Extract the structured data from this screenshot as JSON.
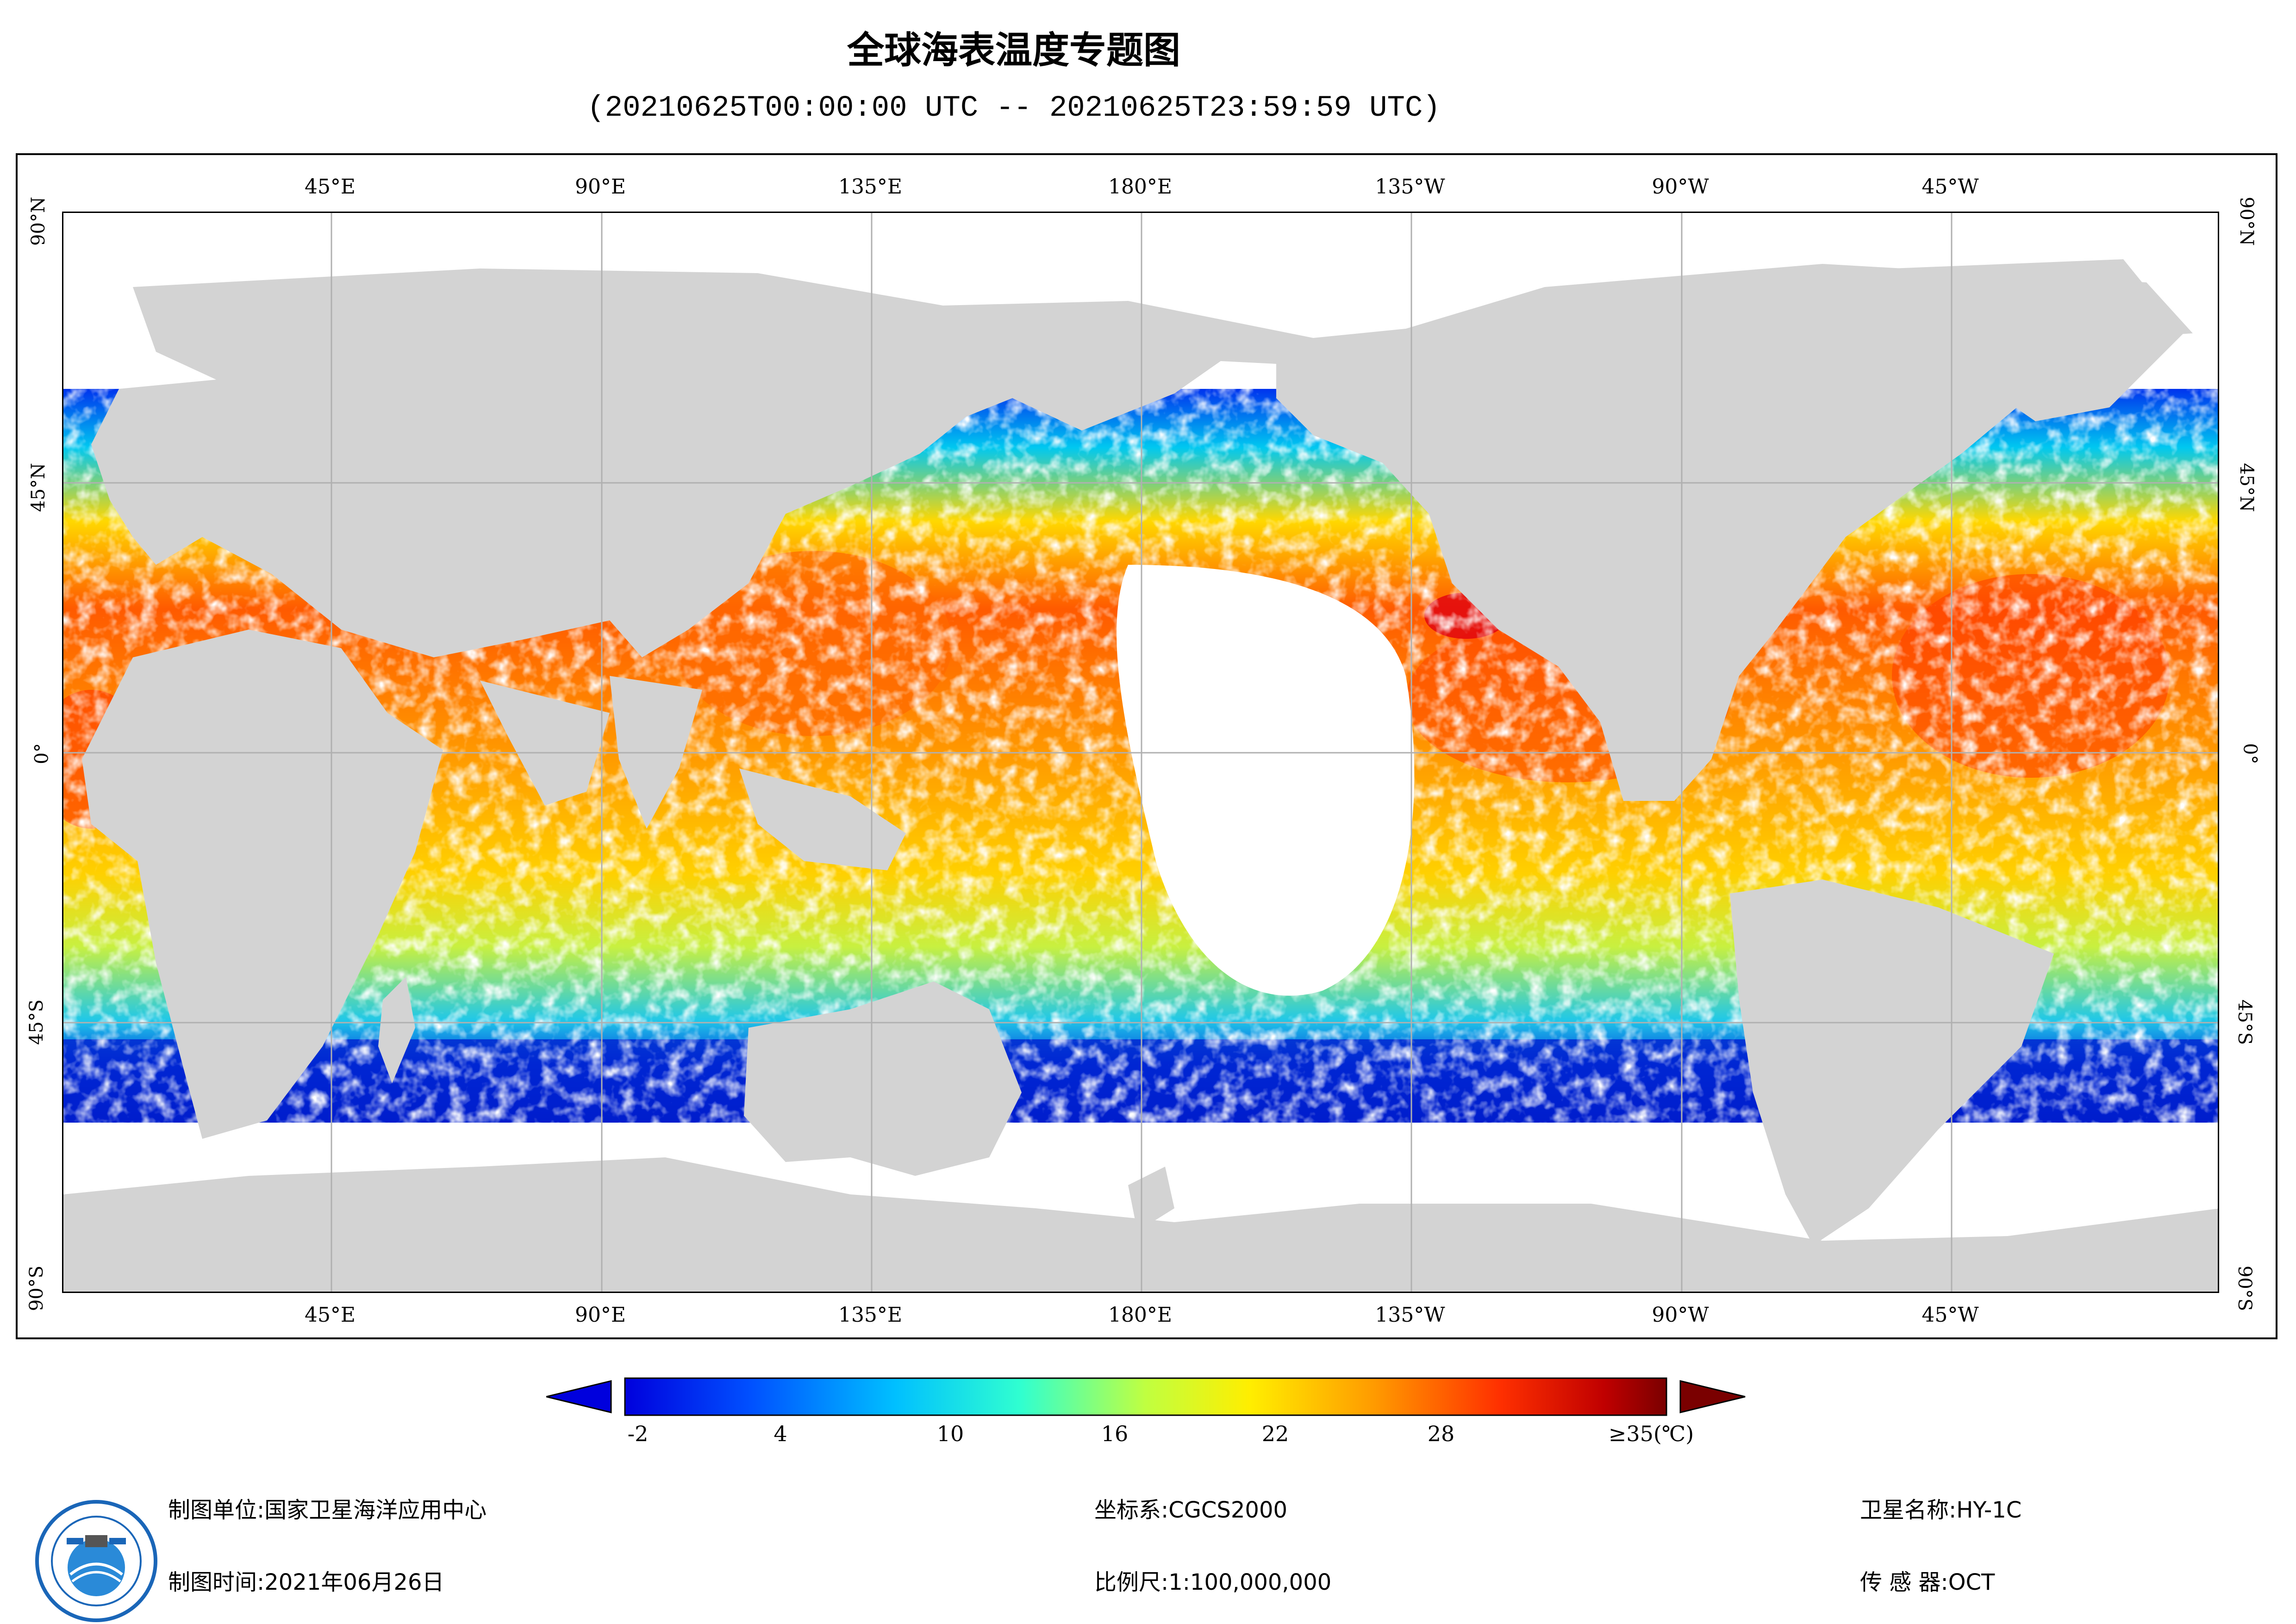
{
  "title": "全球海表温度专题图",
  "subtitle": "(20210625T00:00:00 UTC -- 20210625T23:59:59 UTC)",
  "map": {
    "lon_labels": [
      "45°E",
      "90°E",
      "135°E",
      "180°E",
      "135°W",
      "90°W",
      "45°W"
    ],
    "lat_labels": [
      "90°N",
      "45°N",
      "0°",
      "45°S",
      "90°S"
    ],
    "land_color": "#d3d3d3",
    "grid_color": "#b0b0b0"
  },
  "colorbar": {
    "ticks": [
      "-2",
      "4",
      "10",
      "16",
      "22",
      "28",
      "≥35(℃)"
    ],
    "min_arrow_color": "#0000dd",
    "max_arrow_color": "#7a0000"
  },
  "footer": {
    "unit_label": "制图单位:",
    "unit_value": "国家卫星海洋应用中心",
    "time_label": "制图时间:",
    "time_value": "2021年06月26日",
    "coord_label": "坐标系:",
    "coord_value": "CGCS2000",
    "scale_label": "比例尺:",
    "scale_value": "1:100,000,000",
    "sat_label": "卫星名称:",
    "sat_value": "HY-1C",
    "sensor_label": "传 感 器:",
    "sensor_value": "OCT"
  },
  "logo": {
    "icon": "nsoas-logo"
  }
}
